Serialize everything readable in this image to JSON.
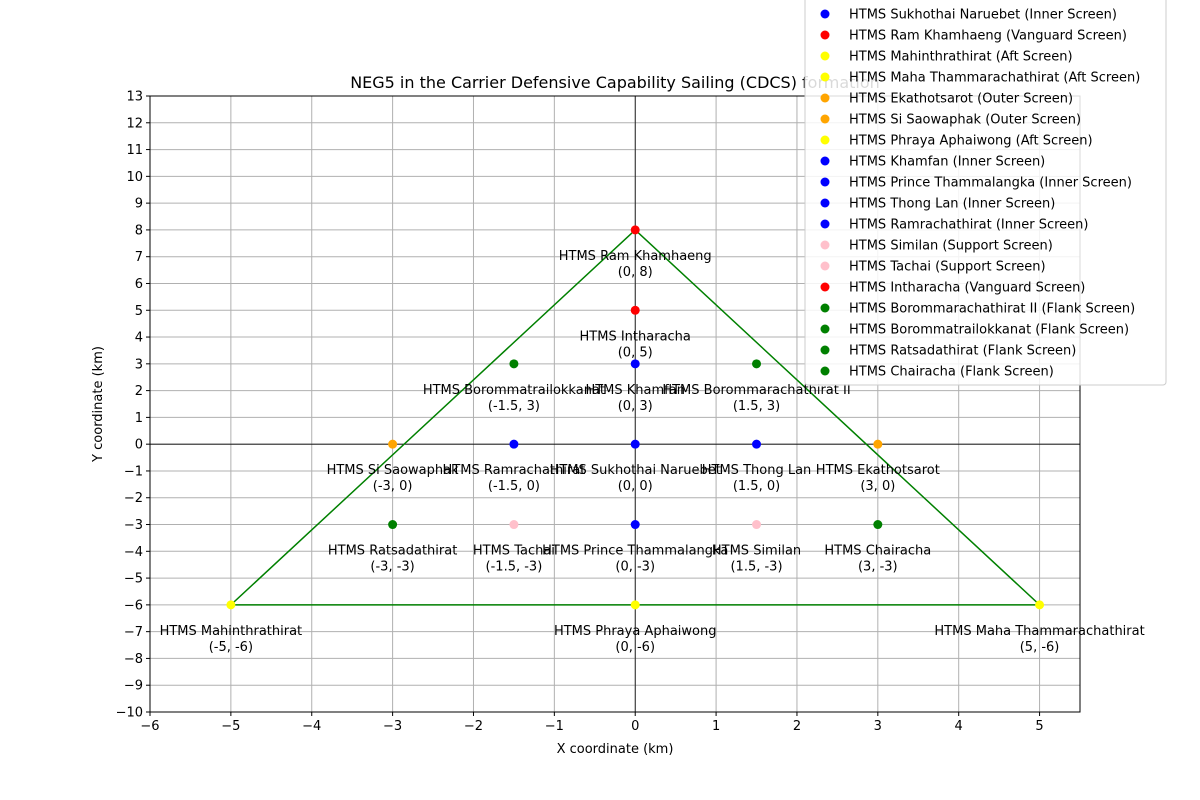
{
  "chart_data": {
    "type": "scatter",
    "title": "NEG5 in the Carrier Defensive Capability Sailing (CDCS) formation",
    "xlabel": "X coordinate (km)",
    "ylabel": "Y coordinate (km)",
    "xlim": [
      -6,
      5.5
    ],
    "ylim": [
      -10,
      13
    ],
    "xticks": [
      -6,
      -5,
      -4,
      -3,
      -2,
      -1,
      0,
      1,
      2,
      3,
      4,
      5
    ],
    "yticks": [
      -10,
      -9,
      -8,
      -7,
      -6,
      -5,
      -4,
      -3,
      -2,
      -1,
      0,
      1,
      2,
      3,
      4,
      5,
      6,
      7,
      8,
      9,
      10,
      11,
      12,
      13
    ],
    "grid": true,
    "legend_position": "top-right",
    "triangle": {
      "color": "#008000",
      "points": [
        [
          0,
          8
        ],
        [
          -5,
          -6
        ],
        [
          5,
          -6
        ]
      ]
    },
    "series": [
      {
        "name": "HTMS Sukhothai Naruebet (Inner Screen)",
        "short": "HTMS Sukhothai Naruebet",
        "coord": "(0, 0)",
        "x": 0,
        "y": 0,
        "color": "#0000ff"
      },
      {
        "name": "HTMS Ram Khamhaeng (Vanguard Screen)",
        "short": "HTMS Ram Khamhaeng",
        "coord": "(0, 8)",
        "x": 0,
        "y": 8,
        "color": "#ff0000"
      },
      {
        "name": "HTMS Mahinthrathirat (Aft Screen)",
        "short": "HTMS Mahinthrathirat",
        "coord": "(-5, -6)",
        "x": -5,
        "y": -6,
        "color": "#ffff00"
      },
      {
        "name": "HTMS Maha Thammarachathirat (Aft Screen)",
        "short": "HTMS Maha Thammarachathirat",
        "coord": "(5, -6)",
        "x": 5,
        "y": -6,
        "color": "#ffff00"
      },
      {
        "name": "HTMS Ekathotsarot (Outer Screen)",
        "short": "HTMS Ekathotsarot",
        "coord": "(3, 0)",
        "x": 3,
        "y": 0,
        "color": "#ffa500"
      },
      {
        "name": "HTMS Si Saowaphak (Outer Screen)",
        "short": "HTMS Si Saowaphak",
        "coord": "(-3, 0)",
        "x": -3,
        "y": 0,
        "color": "#ffa500"
      },
      {
        "name": "HTMS Phraya Aphaiwong (Aft Screen)",
        "short": "HTMS Phraya Aphaiwong",
        "coord": "(0, -6)",
        "x": 0,
        "y": -6,
        "color": "#ffff00"
      },
      {
        "name": "HTMS Khamfan (Inner Screen)",
        "short": "HTMS Khamfan",
        "coord": "(0, 3)",
        "x": 0,
        "y": 3,
        "color": "#0000ff"
      },
      {
        "name": "HTMS Prince Thammalangka (Inner Screen)",
        "short": "HTMS Prince Thammalangka",
        "coord": "(0, -3)",
        "x": 0,
        "y": -3,
        "color": "#0000ff"
      },
      {
        "name": "HTMS Thong Lan (Inner Screen)",
        "short": "HTMS Thong Lan",
        "coord": "(1.5, 0)",
        "x": 1.5,
        "y": 0,
        "color": "#0000ff"
      },
      {
        "name": "HTMS Ramrachathirat (Inner Screen)",
        "short": "HTMS Ramrachathirat",
        "coord": "(-1.5, 0)",
        "x": -1.5,
        "y": 0,
        "color": "#0000ff"
      },
      {
        "name": "HTMS Similan (Support Screen)",
        "short": "HTMS Similan",
        "coord": "(1.5, -3)",
        "x": 1.5,
        "y": -3,
        "color": "#ffc0cb"
      },
      {
        "name": "HTMS Tachai (Support Screen)",
        "short": "HTMS Tachai",
        "coord": "(-1.5, -3)",
        "x": -1.5,
        "y": -3,
        "color": "#ffc0cb"
      },
      {
        "name": "HTMS Intharacha (Vanguard Screen)",
        "short": "HTMS Intharacha",
        "coord": "(0, 5)",
        "x": 0,
        "y": 5,
        "color": "#ff0000"
      },
      {
        "name": "HTMS Borommarachathirat II (Flank Screen)",
        "short": "HTMS Borommarachathirat II",
        "coord": "(1.5, 3)",
        "x": 1.5,
        "y": 3,
        "color": "#008000"
      },
      {
        "name": "HTMS Borommatrailokkanat (Flank Screen)",
        "short": "HTMS Borommatrailokkanat",
        "coord": "(-1.5, 3)",
        "x": -1.5,
        "y": 3,
        "color": "#008000"
      },
      {
        "name": "HTMS Ratsadathirat (Flank Screen)",
        "short": "HTMS Ratsadathirat",
        "coord": "(-3, -3)",
        "x": -3,
        "y": -3,
        "color": "#008000"
      },
      {
        "name": "HTMS Chairacha (Flank Screen)",
        "short": "HTMS Chairacha",
        "coord": "(3, -3)",
        "x": 3,
        "y": -3,
        "color": "#008000"
      }
    ]
  }
}
